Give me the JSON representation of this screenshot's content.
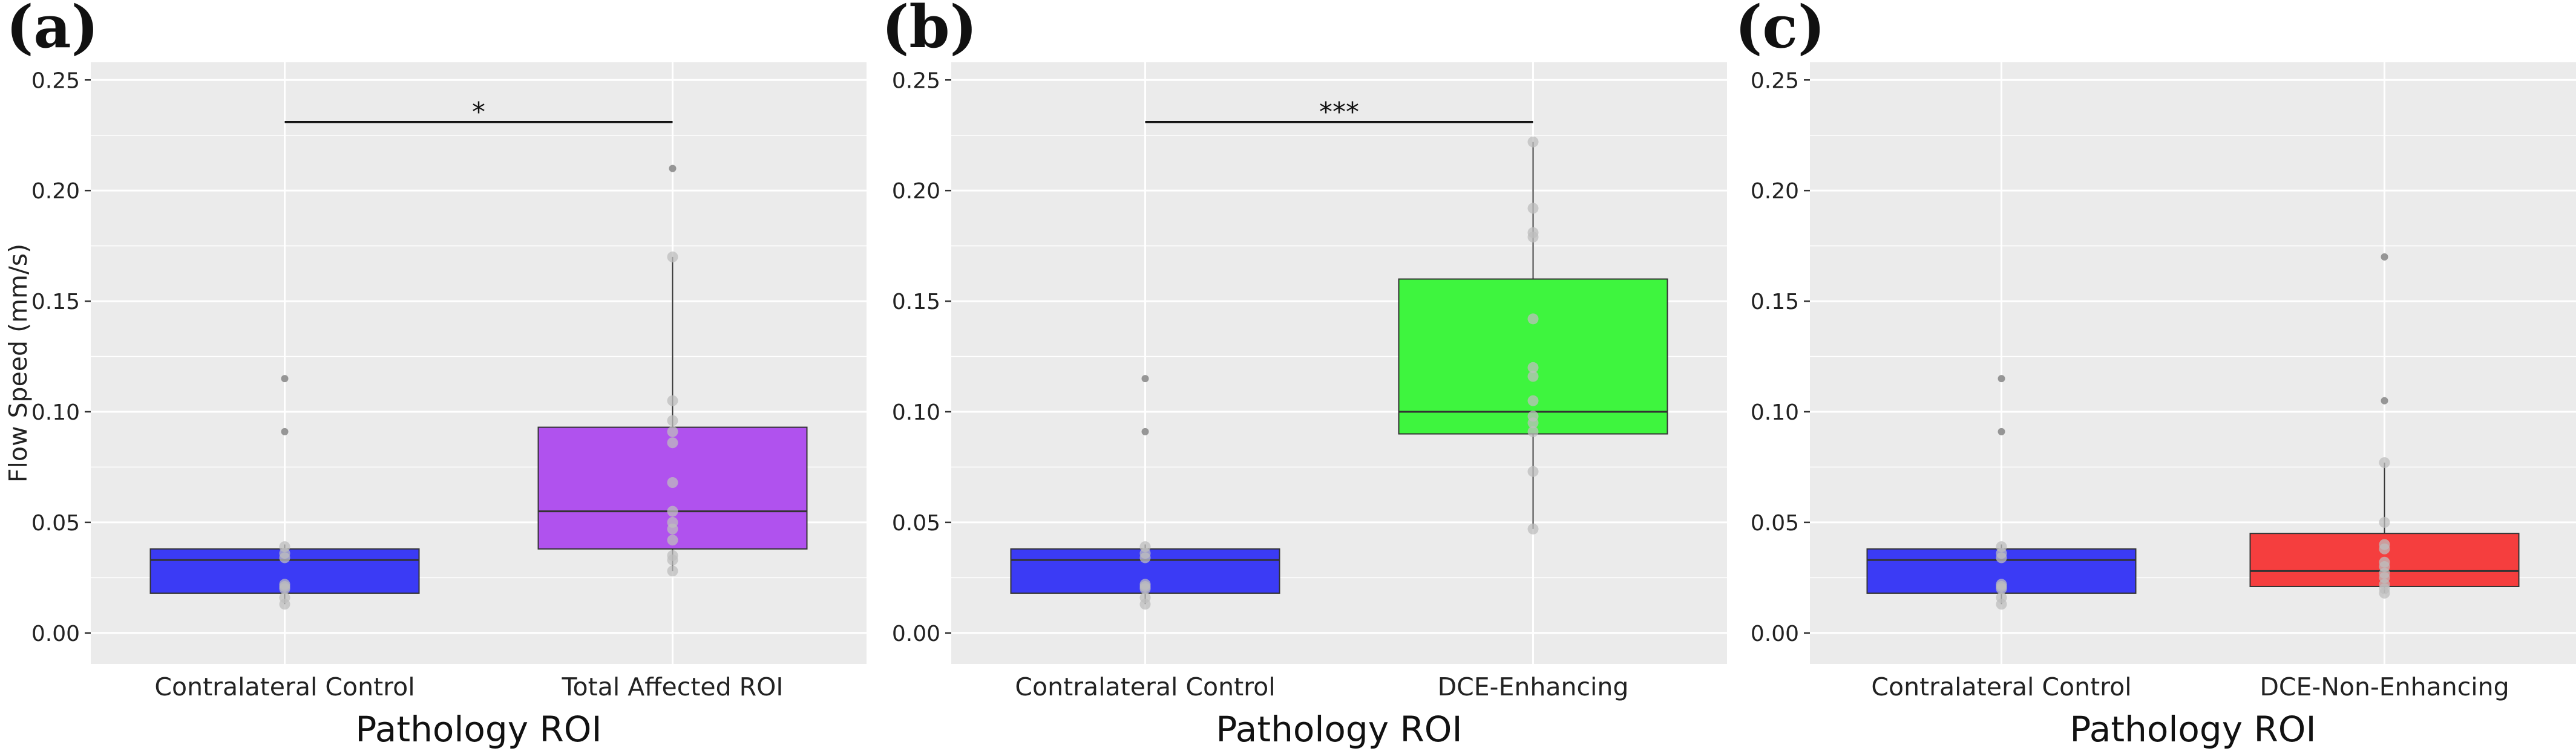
{
  "chart_data": [
    {
      "type": "box",
      "panel_label": "(a)",
      "ylabel": "Flow Speed (mm/s)",
      "xlabel": "Pathology ROI",
      "ylim": [
        -0.014,
        0.258
      ],
      "yticks": [
        0.0,
        0.05,
        0.1,
        0.15,
        0.2,
        0.25
      ],
      "ytick_labels": [
        "0.00",
        "0.05",
        "0.10",
        "0.15",
        "0.20",
        "0.25"
      ],
      "categories": [
        "Contralateral Control",
        "Total Affected ROI"
      ],
      "boxes": [
        {
          "name": "Contralateral Control",
          "color": "#3b3bf5",
          "q1": 0.018,
          "median": 0.033,
          "q3": 0.038,
          "whisker_low": 0.013,
          "whisker_high": 0.04,
          "points": [
            0.115,
            0.091,
            0.039,
            0.036,
            0.034,
            0.022,
            0.021,
            0.02,
            0.016,
            0.013
          ]
        },
        {
          "name": "Total Affected ROI",
          "color": "#b052ee",
          "q1": 0.038,
          "median": 0.055,
          "q3": 0.093,
          "whisker_low": 0.028,
          "whisker_high": 0.17,
          "points": [
            0.21,
            0.17,
            0.105,
            0.096,
            0.091,
            0.086,
            0.068,
            0.055,
            0.05,
            0.047,
            0.042,
            0.035,
            0.033,
            0.028
          ]
        }
      ],
      "significance": {
        "from": 0,
        "to": 1,
        "y": 0.231,
        "label": "*"
      }
    },
    {
      "type": "box",
      "panel_label": "(b)",
      "ylabel": "",
      "xlabel": "Pathology ROI",
      "ylim": [
        -0.014,
        0.258
      ],
      "yticks": [
        0.0,
        0.05,
        0.1,
        0.15,
        0.2,
        0.25
      ],
      "ytick_labels": [
        "0.00",
        "0.05",
        "0.10",
        "0.15",
        "0.20",
        "0.25"
      ],
      "categories": [
        "Contralateral Control",
        "DCE-Enhancing"
      ],
      "boxes": [
        {
          "name": "Contralateral Control",
          "color": "#3b3bf5",
          "q1": 0.018,
          "median": 0.033,
          "q3": 0.038,
          "whisker_low": 0.013,
          "whisker_high": 0.04,
          "points": [
            0.115,
            0.091,
            0.039,
            0.036,
            0.034,
            0.022,
            0.021,
            0.02,
            0.016,
            0.013
          ]
        },
        {
          "name": "DCE-Enhancing",
          "color": "#3ef53e",
          "q1": 0.09,
          "median": 0.1,
          "q3": 0.16,
          "whisker_low": 0.047,
          "whisker_high": 0.222,
          "points": [
            0.222,
            0.192,
            0.181,
            0.179,
            0.142,
            0.12,
            0.116,
            0.105,
            0.098,
            0.095,
            0.091,
            0.073,
            0.047
          ]
        }
      ],
      "significance": {
        "from": 0,
        "to": 1,
        "y": 0.231,
        "label": "***"
      }
    },
    {
      "type": "box",
      "panel_label": "(c)",
      "ylabel": "",
      "xlabel": "Pathology ROI",
      "ylim": [
        -0.014,
        0.258
      ],
      "yticks": [
        0.0,
        0.05,
        0.1,
        0.15,
        0.2,
        0.25
      ],
      "ytick_labels": [
        "0.00",
        "0.05",
        "0.10",
        "0.15",
        "0.20",
        "0.25"
      ],
      "categories": [
        "Contralateral Control",
        "DCE-Non-Enhancing"
      ],
      "boxes": [
        {
          "name": "Contralateral Control",
          "color": "#3b3bf5",
          "q1": 0.018,
          "median": 0.033,
          "q3": 0.038,
          "whisker_low": 0.013,
          "whisker_high": 0.04,
          "points": [
            0.115,
            0.091,
            0.039,
            0.036,
            0.034,
            0.022,
            0.021,
            0.02,
            0.016,
            0.013
          ]
        },
        {
          "name": "DCE-Non-Enhancing",
          "color": "#f53e3e",
          "q1": 0.021,
          "median": 0.028,
          "q3": 0.045,
          "whisker_low": 0.018,
          "whisker_high": 0.077,
          "points": [
            0.17,
            0.105,
            0.077,
            0.05,
            0.04,
            0.038,
            0.032,
            0.03,
            0.027,
            0.025,
            0.022,
            0.02,
            0.018
          ]
        }
      ],
      "significance": null
    }
  ],
  "colors": {
    "panel_background": "#ebebeb",
    "gridline": "#ffffff",
    "median_line": "#333333",
    "point": "#bdbdbd",
    "outlier": "#8c8c8c"
  }
}
